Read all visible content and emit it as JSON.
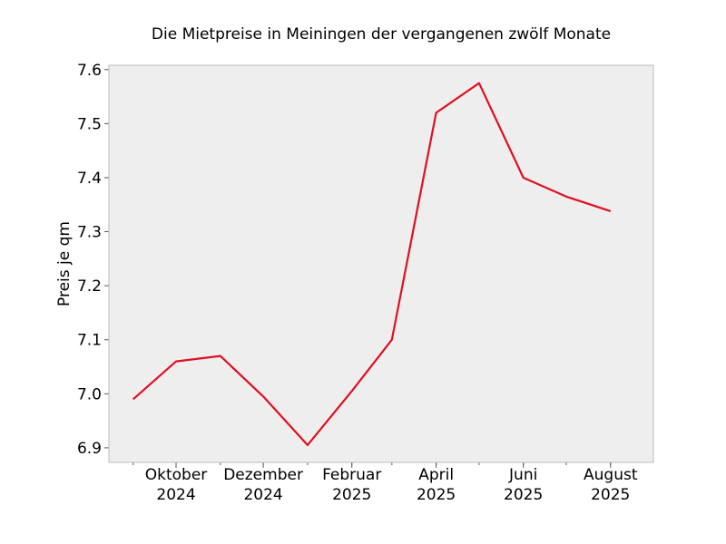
{
  "chart_data": {
    "type": "line",
    "title": "Die Mietpreise in Meiningen der vergangenen zwölf Monate",
    "xlabel": "",
    "ylabel": "Preis je qm",
    "x": [
      "2024-09",
      "2024-10",
      "2024-11",
      "2024-12",
      "2025-01",
      "2025-02",
      "2025-03",
      "2025-04",
      "2025-05",
      "2025-06",
      "2025-07",
      "2025-08"
    ],
    "xlim": [
      "2024-08-15",
      "2025-08-31"
    ],
    "ylim": [
      6.873,
      7.608
    ],
    "yticks": [
      6.9,
      7.0,
      7.1,
      7.2,
      7.3,
      7.4,
      7.5,
      7.6
    ],
    "ytick_labels": [
      "6.9",
      "7.0",
      "7.1",
      "7.2",
      "7.3",
      "7.4",
      "7.5",
      "7.6"
    ],
    "xticks": [
      {
        "x": "2024-10",
        "line1": "Oktober",
        "line2": "2024"
      },
      {
        "x": "2024-12",
        "line1": "Dezember",
        "line2": "2024"
      },
      {
        "x": "2025-02",
        "line1": "Februar",
        "line2": "2025"
      },
      {
        "x": "2025-04",
        "line1": "April",
        "line2": "2025"
      },
      {
        "x": "2025-06",
        "line1": "Juni",
        "line2": "2025"
      },
      {
        "x": "2025-08",
        "line1": "August",
        "line2": "2025"
      }
    ],
    "series": [
      {
        "values": [
          6.99,
          7.06,
          7.07,
          6.995,
          6.905,
          7.005,
          7.1,
          7.52,
          7.575,
          7.4,
          7.365,
          7.338
        ],
        "color": "#e0101f"
      }
    ],
    "grid": true,
    "background": "#eeeeee"
  }
}
